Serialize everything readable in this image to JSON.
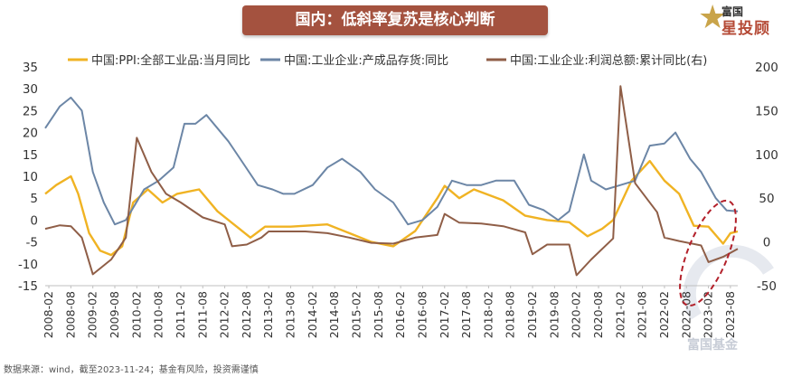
{
  "title": "国内：低斜率复苏是核心判断",
  "logo": {
    "small": "富国",
    "big": "星投顾",
    "watermark": "富国基金"
  },
  "source": "数据来源：wind，截至2023-11-24；基金有风险，投资需谨慎",
  "chart_data": {
    "type": "line",
    "legend_placement": "top",
    "grid": false,
    "x_ticks": [
      "2008-02",
      "2008-08",
      "2009-02",
      "2009-08",
      "2010-02",
      "2010-08",
      "2011-02",
      "2011-08",
      "2012-02",
      "2012-08",
      "2013-02",
      "2013-08",
      "2014-02",
      "2014-08",
      "2015-02",
      "2015-08",
      "2016-02",
      "2016-08",
      "2017-02",
      "2017-08",
      "2018-02",
      "2018-08",
      "2019-02",
      "2019-08",
      "2020-02",
      "2020-08",
      "2021-02",
      "2021-08",
      "2022-02",
      "2022-08",
      "2023-02",
      "2023-08"
    ],
    "y_left": {
      "min": -15,
      "max": 35,
      "ticks": [
        -15,
        -10,
        -5,
        0,
        5,
        10,
        15,
        20,
        25,
        30,
        35
      ]
    },
    "y_right": {
      "min": -50,
      "max": 200,
      "ticks": [
        -50,
        0,
        50,
        100,
        150,
        200
      ]
    },
    "series": [
      {
        "name": "中国:PPI:全部工业品:当月同比",
        "color": "#f0b323",
        "axis": "left",
        "width": 2.4,
        "points": [
          [
            "2008-01",
            6
          ],
          [
            "2008-04",
            8
          ],
          [
            "2008-08",
            10
          ],
          [
            "2008-10",
            6
          ],
          [
            "2009-01",
            -3
          ],
          [
            "2009-04",
            -7
          ],
          [
            "2009-07",
            -8
          ],
          [
            "2009-10",
            -6
          ],
          [
            "2010-01",
            4
          ],
          [
            "2010-05",
            7
          ],
          [
            "2010-09",
            4
          ],
          [
            "2011-01",
            6
          ],
          [
            "2011-07",
            7
          ],
          [
            "2011-12",
            2
          ],
          [
            "2012-06",
            -2
          ],
          [
            "2012-09",
            -4
          ],
          [
            "2013-01",
            -1.5
          ],
          [
            "2013-08",
            -1.5
          ],
          [
            "2014-06",
            -1
          ],
          [
            "2014-12",
            -3
          ],
          [
            "2015-06",
            -5
          ],
          [
            "2015-12",
            -6
          ],
          [
            "2016-06",
            -2.5
          ],
          [
            "2016-12",
            5
          ],
          [
            "2017-02",
            7.8
          ],
          [
            "2017-06",
            5
          ],
          [
            "2017-10",
            7
          ],
          [
            "2018-06",
            4.5
          ],
          [
            "2018-12",
            1
          ],
          [
            "2019-06",
            0
          ],
          [
            "2019-12",
            -0.5
          ],
          [
            "2020-05",
            -3.7
          ],
          [
            "2020-09",
            -2
          ],
          [
            "2020-12",
            0
          ],
          [
            "2021-05",
            9
          ],
          [
            "2021-10",
            13.5
          ],
          [
            "2022-02",
            9
          ],
          [
            "2022-06",
            6
          ],
          [
            "2022-10",
            -1.3
          ],
          [
            "2023-02",
            -1.5
          ],
          [
            "2023-06",
            -5.4
          ],
          [
            "2023-08",
            -3
          ],
          [
            "2023-10",
            -2.6
          ]
        ]
      },
      {
        "name": "中国:工业企业:产成品存货:同比",
        "color": "#6c86a6",
        "axis": "left",
        "width": 2,
        "points": [
          [
            "2008-01",
            21
          ],
          [
            "2008-05",
            26
          ],
          [
            "2008-08",
            28
          ],
          [
            "2008-11",
            25
          ],
          [
            "2009-02",
            11
          ],
          [
            "2009-05",
            4
          ],
          [
            "2009-08",
            -1
          ],
          [
            "2009-11",
            0
          ],
          [
            "2010-04",
            7
          ],
          [
            "2010-08",
            9
          ],
          [
            "2010-12",
            12
          ],
          [
            "2011-03",
            22
          ],
          [
            "2011-06",
            22
          ],
          [
            "2011-09",
            24
          ],
          [
            "2012-03",
            18
          ],
          [
            "2012-07",
            13
          ],
          [
            "2012-11",
            8
          ],
          [
            "2013-03",
            7
          ],
          [
            "2013-06",
            6
          ],
          [
            "2013-09",
            6
          ],
          [
            "2014-02",
            8
          ],
          [
            "2014-06",
            12
          ],
          [
            "2014-10",
            14
          ],
          [
            "2015-03",
            11
          ],
          [
            "2015-07",
            7
          ],
          [
            "2015-12",
            4
          ],
          [
            "2016-04",
            -1
          ],
          [
            "2016-08",
            0
          ],
          [
            "2016-12",
            3
          ],
          [
            "2017-04",
            9
          ],
          [
            "2017-08",
            8
          ],
          [
            "2017-12",
            8
          ],
          [
            "2018-04",
            9
          ],
          [
            "2018-09",
            9
          ],
          [
            "2019-01",
            3.5
          ],
          [
            "2019-05",
            2.3
          ],
          [
            "2019-09",
            0
          ],
          [
            "2019-12",
            2
          ],
          [
            "2020-04",
            15
          ],
          [
            "2020-06",
            9
          ],
          [
            "2020-10",
            7
          ],
          [
            "2021-02",
            8
          ],
          [
            "2021-06",
            9
          ],
          [
            "2021-10",
            17
          ],
          [
            "2022-02",
            17.5
          ],
          [
            "2022-05",
            20
          ],
          [
            "2022-09",
            14
          ],
          [
            "2022-12",
            11
          ],
          [
            "2023-04",
            5
          ],
          [
            "2023-07",
            2.2
          ],
          [
            "2023-10",
            2
          ]
        ]
      },
      {
        "name": "中国:工业企业:利润总额:累计同比(右)",
        "color": "#8f5e47",
        "axis": "right",
        "width": 2,
        "points": [
          [
            "2008-01",
            15
          ],
          [
            "2008-05",
            19
          ],
          [
            "2008-08",
            18
          ],
          [
            "2008-11",
            5
          ],
          [
            "2009-02",
            -37
          ],
          [
            "2009-07",
            -20
          ],
          [
            "2009-11",
            5
          ],
          [
            "2010-02",
            119
          ],
          [
            "2010-06",
            80
          ],
          [
            "2010-10",
            55
          ],
          [
            "2011-02",
            45
          ],
          [
            "2011-08",
            28
          ],
          [
            "2012-02",
            20
          ],
          [
            "2012-04",
            -5
          ],
          [
            "2012-08",
            -3
          ],
          [
            "2012-12",
            5
          ],
          [
            "2013-02",
            12
          ],
          [
            "2013-06",
            12
          ],
          [
            "2013-12",
            12
          ],
          [
            "2014-06",
            10
          ],
          [
            "2014-12",
            5
          ],
          [
            "2015-06",
            -1
          ],
          [
            "2015-12",
            -2
          ],
          [
            "2016-06",
            5
          ],
          [
            "2016-12",
            8
          ],
          [
            "2017-02",
            32
          ],
          [
            "2017-06",
            22
          ],
          [
            "2017-12",
            21
          ],
          [
            "2018-06",
            18
          ],
          [
            "2018-12",
            11
          ],
          [
            "2019-02",
            -14
          ],
          [
            "2019-06",
            -3
          ],
          [
            "2019-12",
            -3
          ],
          [
            "2020-02",
            -38
          ],
          [
            "2020-06",
            -20
          ],
          [
            "2020-12",
            4
          ],
          [
            "2021-02",
            178
          ],
          [
            "2021-06",
            67
          ],
          [
            "2021-12",
            34
          ],
          [
            "2022-02",
            5
          ],
          [
            "2022-06",
            1
          ],
          [
            "2022-12",
            -4
          ],
          [
            "2023-02",
            -23
          ],
          [
            "2023-06",
            -17
          ],
          [
            "2023-10",
            -7.8
          ]
        ]
      }
    ]
  }
}
